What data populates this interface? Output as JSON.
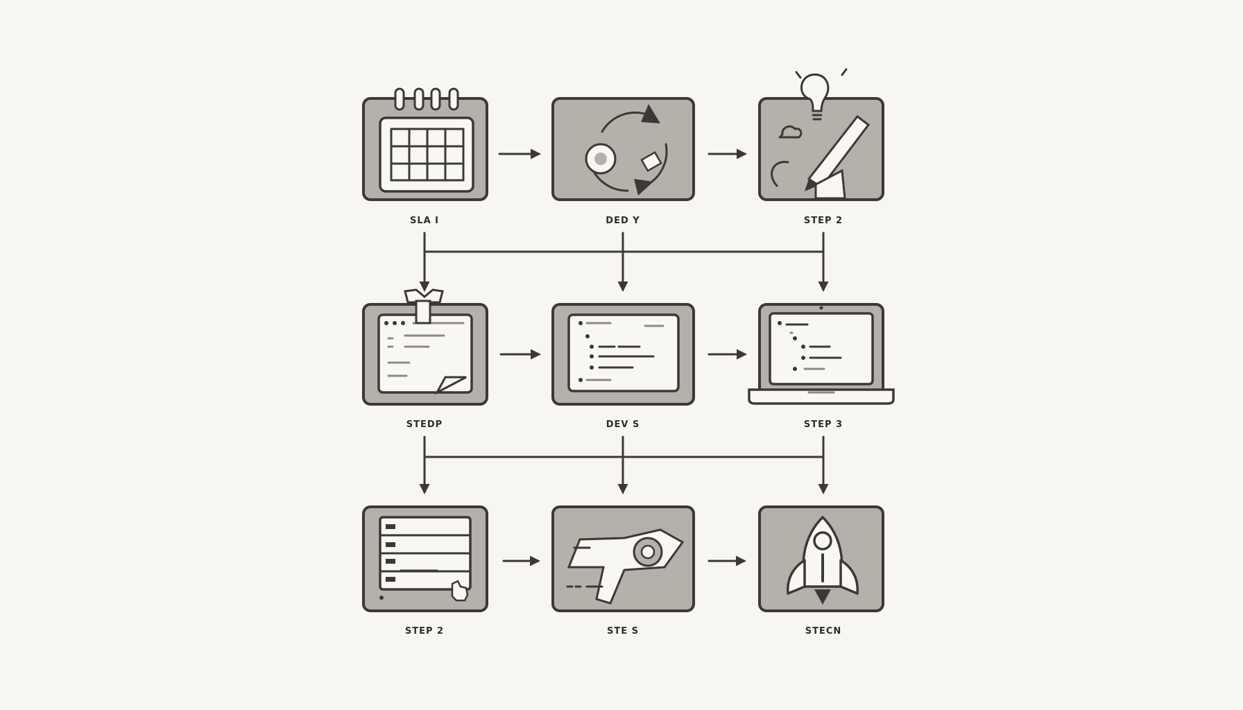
{
  "colors": {
    "background": "#f7f6f2",
    "box_fill": "#b4b1ab",
    "stroke": "#3b3835",
    "screen_fill": "#f8f7f4"
  },
  "steps": [
    {
      "label": "SLA I",
      "icon": "calendar-icon"
    },
    {
      "label": "DED Y",
      "icon": "cycle-arrows-icon"
    },
    {
      "label": "STEP 2",
      "icon": "lightbulb-pen-icon"
    },
    {
      "label": "STEDP",
      "icon": "code-editor-note-icon"
    },
    {
      "label": "DEV S",
      "icon": "code-editor-icon"
    },
    {
      "label": "STEP 3",
      "icon": "laptop-code-icon"
    },
    {
      "label": "STEP 2",
      "icon": "list-form-icon"
    },
    {
      "label": "STE S",
      "icon": "tag-shield-icon"
    },
    {
      "label": "STECN",
      "icon": "rocket-icon"
    }
  ]
}
